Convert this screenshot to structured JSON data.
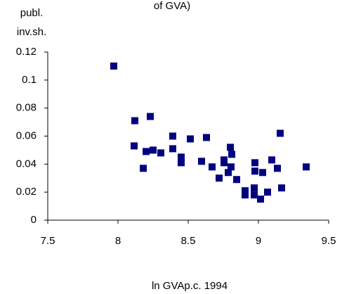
{
  "chart_data": {
    "type": "scatter",
    "title": "of GVA)",
    "y_label_lines": [
      "publ.",
      "inv.sh."
    ],
    "x_label": "ln GVAp.c. 1994",
    "color": "#000080",
    "x": [
      7.97,
      8.12,
      8.23,
      8.115,
      8.2,
      8.25,
      8.18,
      8.305,
      8.39,
      8.39,
      8.45,
      8.45,
      8.515,
      8.63,
      8.595,
      8.67,
      8.72,
      8.755,
      8.755,
      8.785,
      8.805,
      8.8,
      8.81,
      8.845,
      8.905,
      8.905,
      8.97,
      8.97,
      8.975,
      8.975,
      9.03,
      9.015,
      9.065,
      9.095,
      9.135,
      9.155,
      9.165,
      9.34
    ],
    "y": [
      0.11,
      0.071,
      0.074,
      0.053,
      0.049,
      0.05,
      0.037,
      0.048,
      0.06,
      0.051,
      0.045,
      0.041,
      0.058,
      0.059,
      0.042,
      0.038,
      0.03,
      0.043,
      0.041,
      0.034,
      0.038,
      0.052,
      0.047,
      0.029,
      0.021,
      0.018,
      0.023,
      0.018,
      0.041,
      0.035,
      0.034,
      0.015,
      0.02,
      0.043,
      0.037,
      0.062,
      0.023,
      0.038
    ],
    "xlim": [
      7.5,
      9.5
    ],
    "xticks": [
      7.5,
      8,
      8.5,
      9,
      9.5
    ],
    "ylim": [
      0,
      0.12
    ],
    "yticks": [
      0,
      0.02,
      0.04,
      0.06,
      0.08,
      0.1,
      0.12
    ]
  }
}
